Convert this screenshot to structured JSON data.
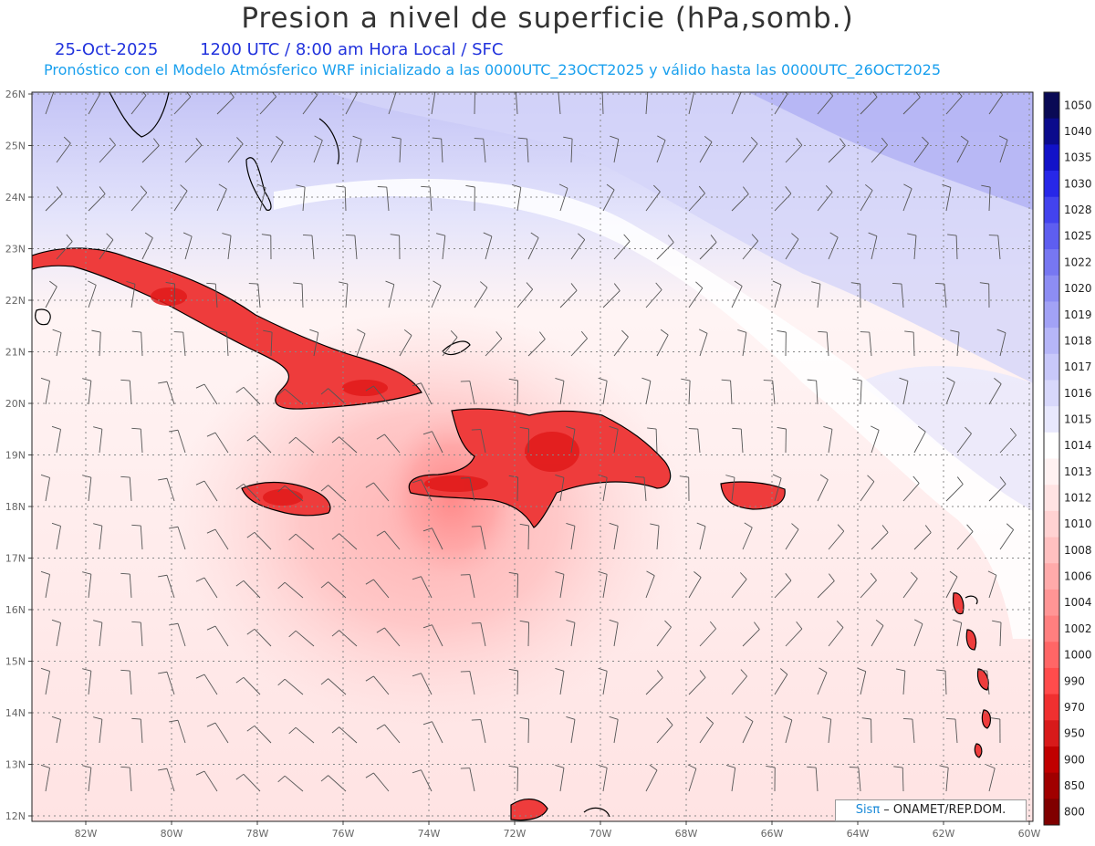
{
  "header": {
    "title": "Presion a nivel de superficie (hPa,somb.)",
    "date": "25-Oct-2025",
    "valid_time": "1200 UTC / 8:00 am Hora Local / SFC",
    "forecast_info": "Pronóstico con el Modelo Atmósferico WRF inicializado a las 0000UTC_23OCT2025 y válido hasta las 0000UTC_26OCT2025"
  },
  "axes": {
    "lat_labels": [
      "26N",
      "25N",
      "24N",
      "23N",
      "22N",
      "21N",
      "20N",
      "19N",
      "18N",
      "17N",
      "16N",
      "15N",
      "14N",
      "13N",
      "12N"
    ],
    "lon_labels": [
      "82W",
      "80W",
      "78W",
      "76W",
      "74W",
      "72W",
      "70W",
      "68W",
      "66W",
      "64W",
      "62W",
      "60W"
    ]
  },
  "colorbar": {
    "levels": [
      "1050",
      "1040",
      "1035",
      "1030",
      "1028",
      "1025",
      "1022",
      "1020",
      "1019",
      "1018",
      "1017",
      "1016",
      "1015",
      "1014",
      "1013",
      "1012",
      "1010",
      "1008",
      "1006",
      "1004",
      "1002",
      "1000",
      "990",
      "970",
      "950",
      "900",
      "850",
      "800"
    ],
    "colors": [
      "#0a0a55",
      "#0b0b8c",
      "#1212c8",
      "#2727e8",
      "#4343ee",
      "#5e5ef0",
      "#7777f2",
      "#8d8df4",
      "#a2a2f6",
      "#b6b6f8",
      "#c8c8fa",
      "#d8d8fb",
      "#e8e8fd",
      "#ffffff",
      "#fff2f2",
      "#ffe3e3",
      "#ffd2d2",
      "#ffc0c0",
      "#ffaaaa",
      "#ff9595",
      "#ff7f7f",
      "#ff6666",
      "#ff4c4c",
      "#f03030",
      "#d81a1a",
      "#c00000",
      "#a00000",
      "#800000"
    ]
  },
  "credit": {
    "sis": "Sisπ",
    "org": " – ONAMET/REP.DOM."
  }
}
